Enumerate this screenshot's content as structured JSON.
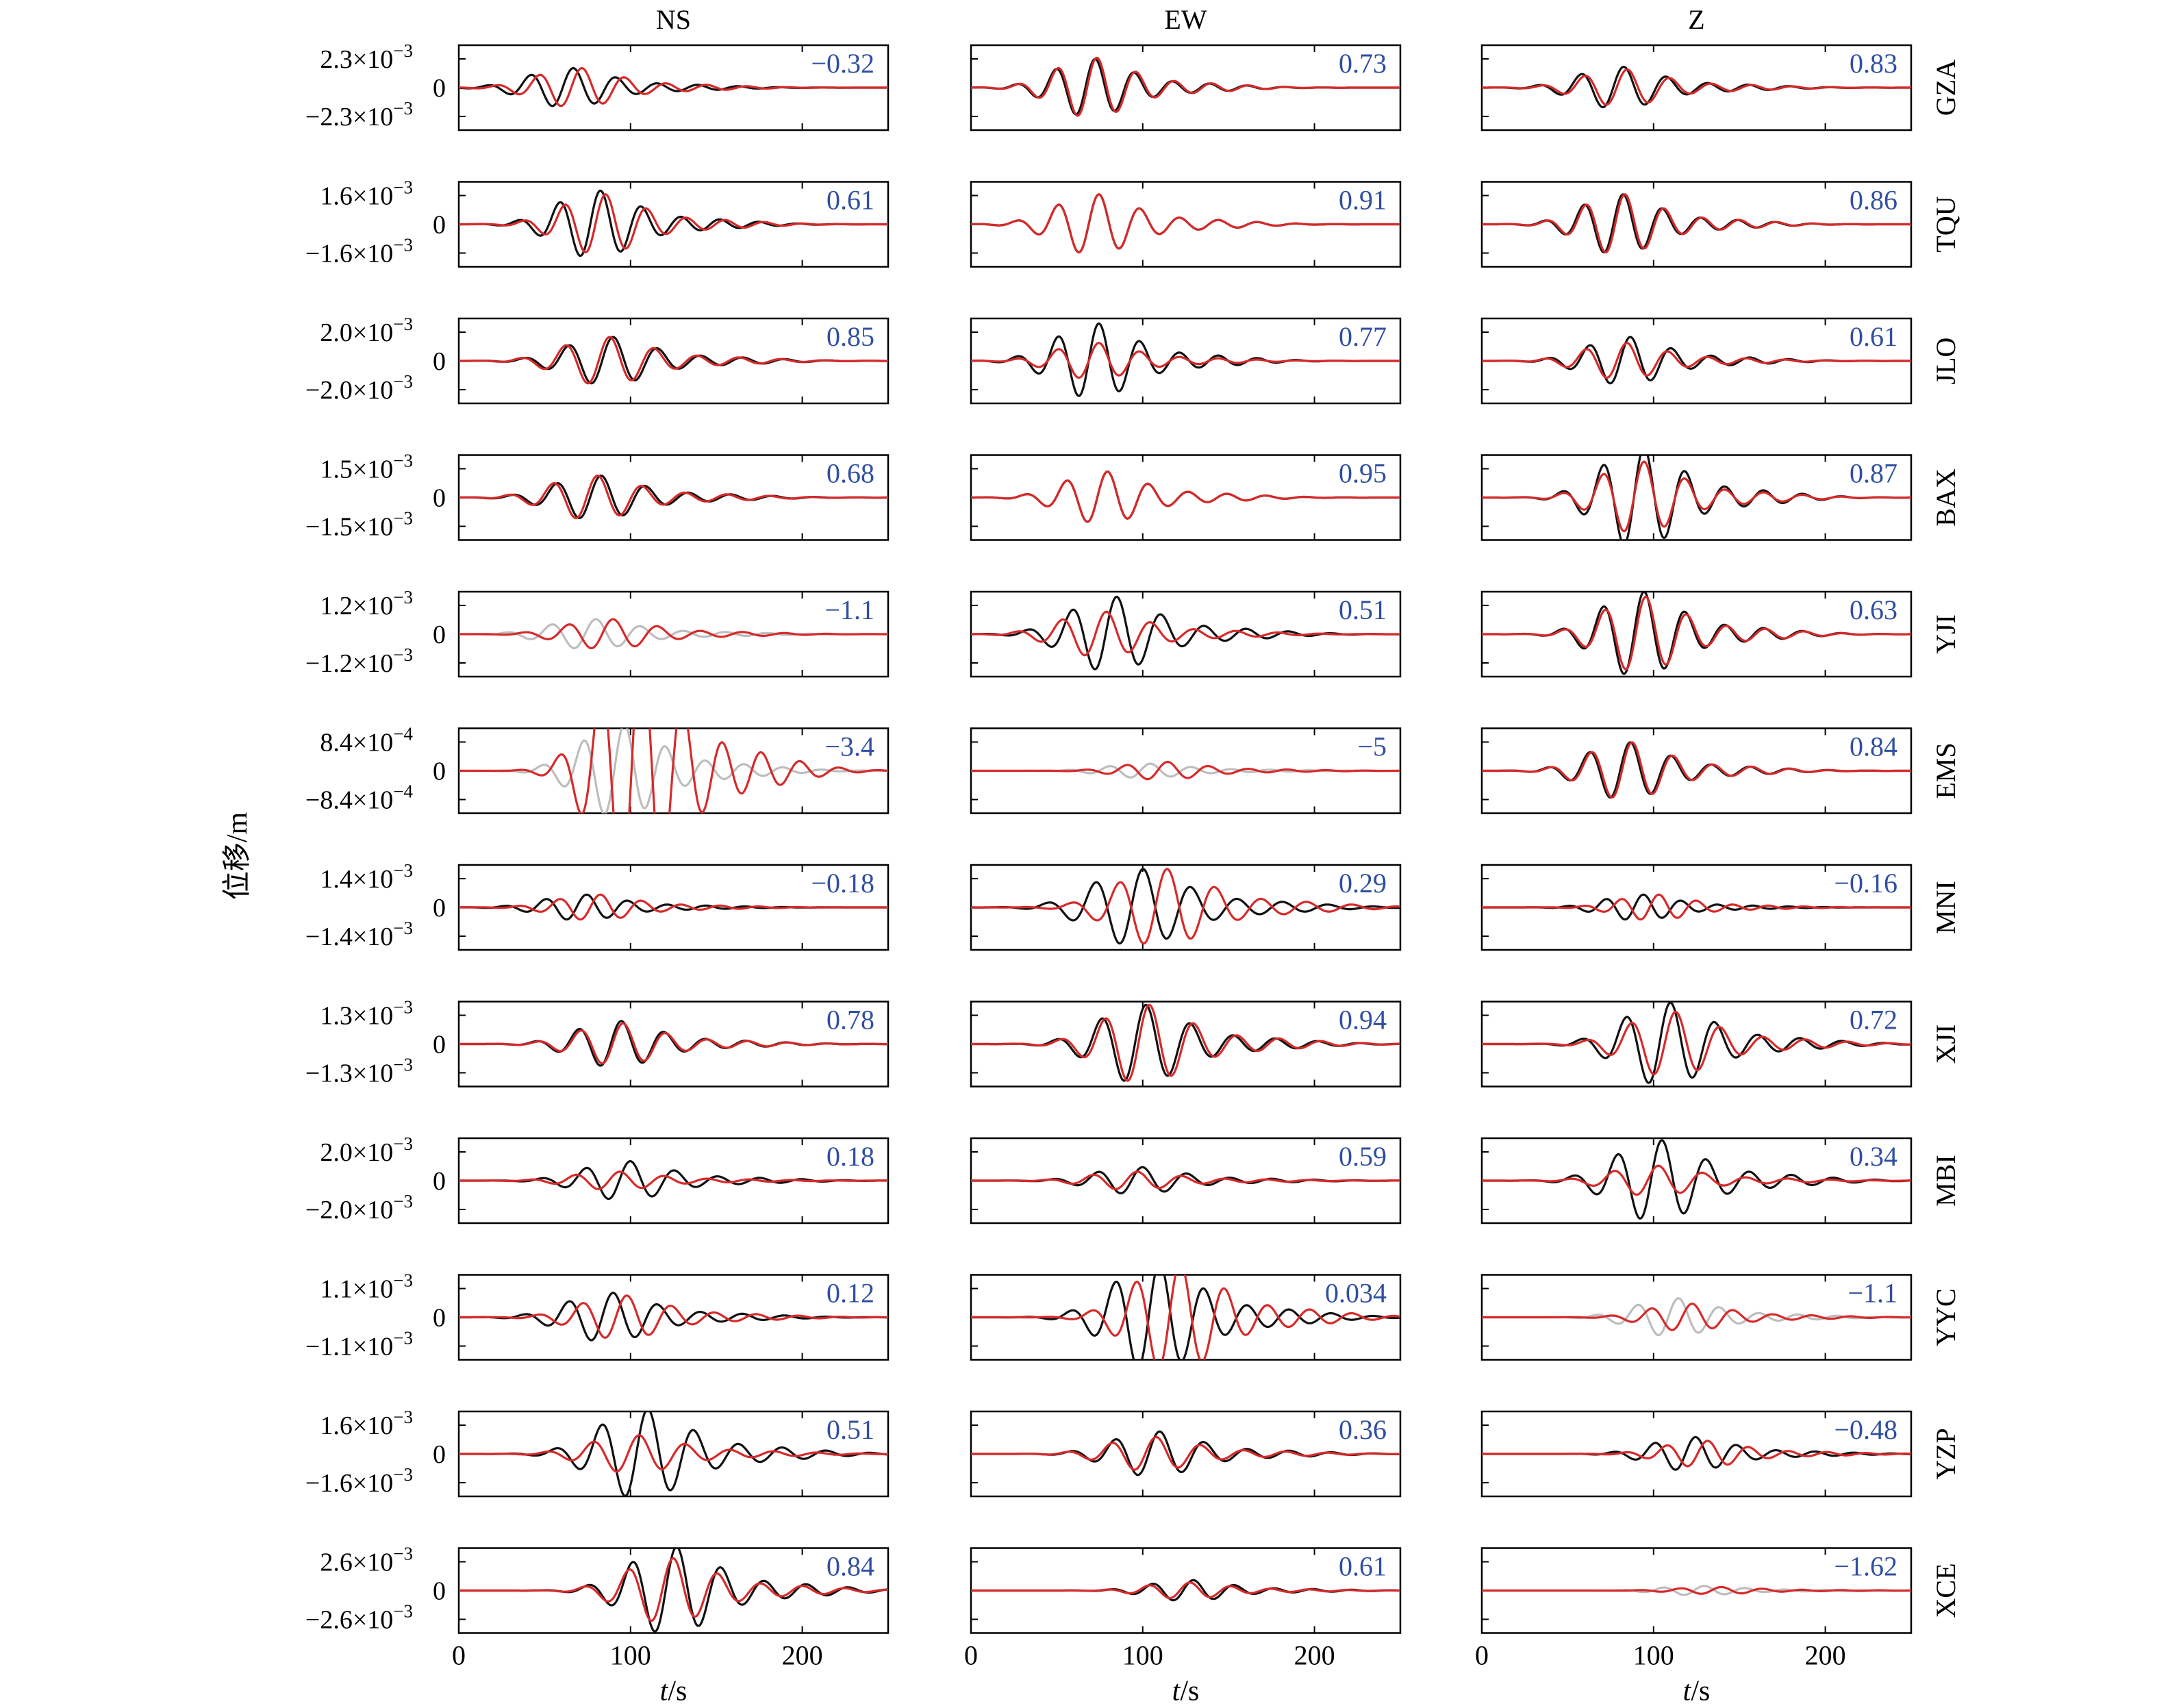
{
  "chart_data": {
    "type": "line",
    "columns": [
      "NS",
      "EW",
      "Z"
    ],
    "ylabel": "位移/m",
    "xlabel_italic": "t",
    "xlabel_suffix": "/s",
    "xlim": [
      0,
      250
    ],
    "xticks": [
      0,
      100,
      200
    ],
    "colors": {
      "observed": "#111111",
      "synthetic": "#d62a2a",
      "rejected": "#bdbdbd",
      "coefficient": "#2f4fa0"
    },
    "stations": [
      {
        "name": "GZA",
        "amplitude": 0.0023,
        "ytick_labels": {
          "mantissa": "2.3",
          "exponent": "−3",
          "zero": "0"
        },
        "coefficients": [
          "−0.32",
          "0.73",
          "0.83"
        ],
        "traces": [
          {
            "t0": 62,
            "period": 25,
            "obs_peak": 0.0015,
            "syn_peak": 0.0015,
            "phase_shift": 5,
            "rejected": false
          },
          {
            "t0": 68,
            "period": 23,
            "obs_peak": 0.0022,
            "syn_peak": 0.0023,
            "phase_shift": 1,
            "rejected": false
          },
          {
            "t0": 78,
            "period": 25,
            "obs_peak": 0.0016,
            "syn_peak": 0.0014,
            "phase_shift": 2,
            "rejected": false
          }
        ]
      },
      {
        "name": "TQU",
        "amplitude": 0.0016,
        "ytick_labels": {
          "mantissa": "1.6",
          "exponent": "−3",
          "zero": "0"
        },
        "coefficients": [
          "0.61",
          "0.91",
          "0.86"
        ],
        "traces": [
          {
            "t0": 78,
            "period": 24,
            "obs_peak": 0.0018,
            "syn_peak": 0.0016,
            "phase_shift": 3,
            "rejected": false
          },
          {
            "t0": 70,
            "period": 24,
            "obs_peak": 0.0016,
            "syn_peak": 0.0016,
            "phase_shift": 0,
            "rejected": false
          },
          {
            "t0": 78,
            "period": 23,
            "obs_peak": 0.0016,
            "syn_peak": 0.0016,
            "phase_shift": 1,
            "rejected": false
          }
        ]
      },
      {
        "name": "JLO",
        "amplitude": 0.002,
        "ytick_labels": {
          "mantissa": "2.0",
          "exponent": "−3",
          "zero": "0"
        },
        "coefficients": [
          "0.85",
          "0.77",
          "0.61"
        ],
        "traces": [
          {
            "t0": 85,
            "period": 26,
            "obs_peak": 0.0016,
            "syn_peak": 0.0016,
            "phase_shift": -2,
            "rejected": false
          },
          {
            "t0": 70,
            "period": 24,
            "obs_peak": 0.0025,
            "syn_peak": 0.0012,
            "phase_shift": 0,
            "rejected": false
          },
          {
            "t0": 82,
            "period": 24,
            "obs_peak": 0.0016,
            "syn_peak": 0.0012,
            "phase_shift": -2,
            "rejected": false
          }
        ]
      },
      {
        "name": "BAX",
        "amplitude": 0.0015,
        "ytick_labels": {
          "mantissa": "1.5",
          "exponent": "−3",
          "zero": "0"
        },
        "coefficients": [
          "0.68",
          "0.95",
          "0.87"
        ],
        "traces": [
          {
            "t0": 78,
            "period": 26,
            "obs_peak": 0.0011,
            "syn_peak": 0.0011,
            "phase_shift": -2,
            "rejected": false
          },
          {
            "t0": 75,
            "period": 24,
            "obs_peak": 0.0013,
            "syn_peak": 0.0013,
            "phase_shift": 0,
            "rejected": false
          },
          {
            "t0": 90,
            "period": 24,
            "obs_peak": 0.0025,
            "syn_peak": 0.0018,
            "phase_shift": 0,
            "rejected": false
          }
        ]
      },
      {
        "name": "YJI",
        "amplitude": 0.0012,
        "ytick_labels": {
          "mantissa": "1.2",
          "exponent": "−3",
          "zero": "0"
        },
        "coefficients": [
          "−1.1",
          "0.51",
          "0.63"
        ],
        "traces": [
          {
            "t0": 75,
            "period": 26,
            "obs_peak": 0.0006,
            "syn_peak": 0.0006,
            "phase_shift": 10,
            "rejected": true
          },
          {
            "t0": 80,
            "period": 26,
            "obs_peak": 0.0015,
            "syn_peak": 0.0009,
            "phase_shift": -6,
            "rejected": false
          },
          {
            "t0": 90,
            "period": 24,
            "obs_peak": 0.0017,
            "syn_peak": 0.0015,
            "phase_shift": 1,
            "rejected": false
          }
        ]
      },
      {
        "name": "EMS",
        "amplitude": 0.00084,
        "ytick_labels": {
          "mantissa": "8.4",
          "exponent": "−4",
          "zero": "0"
        },
        "coefficients": [
          "−3.4",
          "−5",
          "0.84"
        ],
        "traces": [
          {
            "t0": 92,
            "period": 24,
            "obs_peak": 0.0013,
            "syn_peak": 0.0036,
            "phase_shift": 10,
            "rejected": true
          },
          {
            "t0": 100,
            "period": 24,
            "obs_peak": 0.0002,
            "syn_peak": 0.00025,
            "phase_shift": 10,
            "rejected": true
          },
          {
            "t0": 82,
            "period": 24,
            "obs_peak": 0.0008,
            "syn_peak": 0.0008,
            "phase_shift": 1,
            "rejected": false
          }
        ]
      },
      {
        "name": "MNI",
        "amplitude": 0.0014,
        "ytick_labels": {
          "mantissa": "1.4",
          "exponent": "−3",
          "zero": "0"
        },
        "coefficients": [
          "−0.18",
          "0.29",
          "−0.16"
        ],
        "traces": [
          {
            "t0": 70,
            "period": 24,
            "obs_peak": 0.0006,
            "syn_peak": 0.0006,
            "phase_shift": 8,
            "rejected": false
          },
          {
            "t0": 95,
            "period": 28,
            "obs_peak": 0.0018,
            "syn_peak": 0.0018,
            "phase_shift": 14,
            "rejected": false
          },
          {
            "t0": 90,
            "period": 22,
            "obs_peak": 0.0006,
            "syn_peak": 0.0006,
            "phase_shift": 9,
            "rejected": false
          }
        ]
      },
      {
        "name": "XJI",
        "amplitude": 0.0013,
        "ytick_labels": {
          "mantissa": "1.3",
          "exponent": "−3",
          "zero": "0"
        },
        "coefficients": [
          "0.78",
          "0.94",
          "0.72"
        ],
        "traces": [
          {
            "t0": 90,
            "period": 25,
            "obs_peak": 0.001,
            "syn_peak": 0.0009,
            "phase_shift": 1,
            "rejected": false
          },
          {
            "t0": 97,
            "period": 26,
            "obs_peak": 0.0017,
            "syn_peak": 0.0017,
            "phase_shift": 2,
            "rejected": false
          },
          {
            "t0": 105,
            "period": 26,
            "obs_peak": 0.0018,
            "syn_peak": 0.0014,
            "phase_shift": 3,
            "rejected": false
          }
        ]
      },
      {
        "name": "MBI",
        "amplitude": 0.002,
        "ytick_labels": {
          "mantissa": "2.0",
          "exponent": "−3",
          "zero": "0"
        },
        "coefficients": [
          "0.18",
          "0.59",
          "0.34"
        ],
        "traces": [
          {
            "t0": 95,
            "period": 26,
            "obs_peak": 0.0013,
            "syn_peak": 0.0006,
            "phase_shift": -6,
            "rejected": false
          },
          {
            "t0": 95,
            "period": 26,
            "obs_peak": 0.0009,
            "syn_peak": 0.0006,
            "phase_shift": -3,
            "rejected": false
          },
          {
            "t0": 100,
            "period": 26,
            "obs_peak": 0.0027,
            "syn_peak": 0.001,
            "phase_shift": -2,
            "rejected": false
          }
        ]
      },
      {
        "name": "YYC",
        "amplitude": 0.0011,
        "ytick_labels": {
          "mantissa": "1.1",
          "exponent": "−3",
          "zero": "0"
        },
        "coefficients": [
          "0.12",
          "0.034",
          "−1.1"
        ],
        "traces": [
          {
            "t0": 85,
            "period": 26,
            "obs_peak": 0.0009,
            "syn_peak": 0.0008,
            "phase_shift": 8,
            "rejected": false
          },
          {
            "t0": 105,
            "period": 26,
            "obs_peak": 0.002,
            "syn_peak": 0.002,
            "phase_shift": 12,
            "rejected": false
          },
          {
            "t0": 110,
            "period": 24,
            "obs_peak": 0.0007,
            "syn_peak": 0.0005,
            "phase_shift": 8,
            "rejected": true
          }
        ]
      },
      {
        "name": "YZP",
        "amplitude": 0.0016,
        "ytick_labels": {
          "mantissa": "1.6",
          "exponent": "−3",
          "zero": "0"
        },
        "coefficients": [
          "0.51",
          "0.36",
          "−0.48"
        ],
        "traces": [
          {
            "t0": 105,
            "period": 27,
            "obs_peak": 0.0024,
            "syn_peak": 0.001,
            "phase_shift": -5,
            "rejected": false
          },
          {
            "t0": 105,
            "period": 26,
            "obs_peak": 0.0012,
            "syn_peak": 0.0009,
            "phase_shift": -2,
            "rejected": false
          },
          {
            "t0": 120,
            "period": 24,
            "obs_peak": 0.0009,
            "syn_peak": 0.0007,
            "phase_shift": 7,
            "rejected": false
          }
        ]
      },
      {
        "name": "XCE",
        "amplitude": 0.0026,
        "ytick_labels": {
          "mantissa": "2.6",
          "exponent": "−3",
          "zero": "0"
        },
        "coefficients": [
          "0.84",
          "0.61",
          "−1.62"
        ],
        "traces": [
          {
            "t0": 122,
            "period": 26,
            "obs_peak": 0.0038,
            "syn_peak": 0.0028,
            "phase_shift": -2,
            "rejected": false
          },
          {
            "t0": 125,
            "period": 24,
            "obs_peak": 0.0009,
            "syn_peak": 0.0007,
            "phase_shift": -2,
            "rejected": false
          },
          {
            "t0": 125,
            "period": 24,
            "obs_peak": 0.0004,
            "syn_peak": 0.0003,
            "phase_shift": 10,
            "rejected": true
          }
        ]
      }
    ]
  }
}
